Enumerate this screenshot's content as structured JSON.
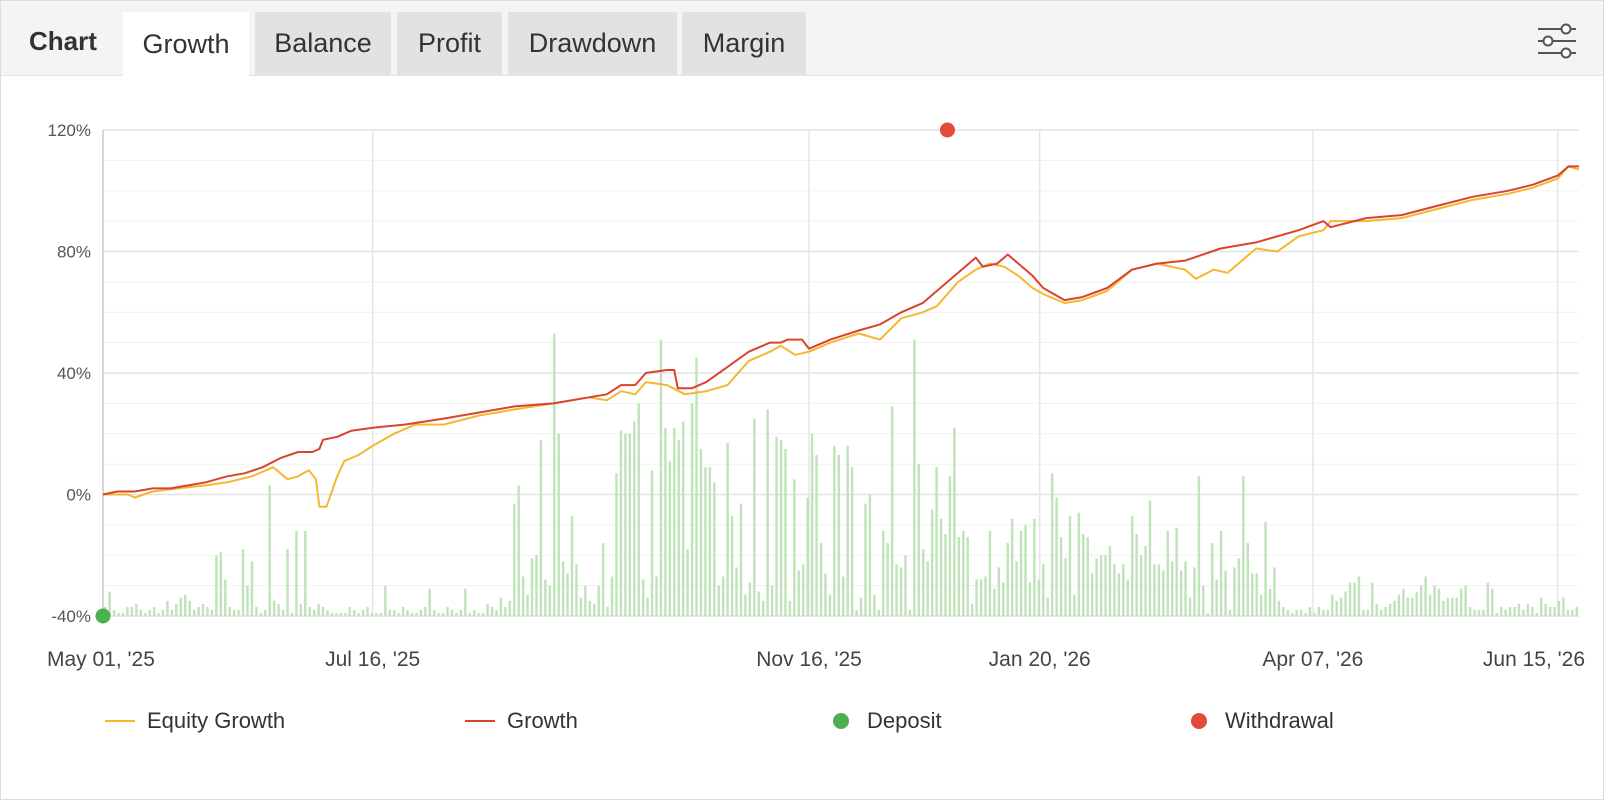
{
  "tabs": {
    "title": "Chart",
    "items": [
      {
        "label": "Growth",
        "active": true
      },
      {
        "label": "Balance",
        "active": false
      },
      {
        "label": "Profit",
        "active": false
      },
      {
        "label": "Drawdown",
        "active": false
      },
      {
        "label": "Margin",
        "active": false
      }
    ],
    "settings_icon": "sliders-icon"
  },
  "legend": [
    {
      "label": "Equity Growth",
      "kind": "line",
      "color": "#f5b731"
    },
    {
      "label": "Growth",
      "kind": "line",
      "color": "#d9432f"
    },
    {
      "label": "Deposit",
      "kind": "dot",
      "color": "#4caf50"
    },
    {
      "label": "Withdrawal",
      "kind": "dot",
      "color": "#e24a3b"
    }
  ],
  "chart_data": {
    "type": "line",
    "title": "",
    "xlabel": "",
    "ylabel": "",
    "x_range": [
      "2025-05-01",
      "2026-06-21"
    ],
    "ylim": [
      -40,
      120
    ],
    "y_ticks": [
      "120%",
      "80%",
      "40%",
      "0%",
      "-40%"
    ],
    "x_ticks": [
      {
        "label": "May 01, '25",
        "date": "2025-05-01"
      },
      {
        "label": "Jul 16, '25",
        "date": "2025-07-16"
      },
      {
        "label": "Nov 16, '25",
        "date": "2025-11-16"
      },
      {
        "label": "Jan 20, '26",
        "date": "2026-01-20"
      },
      {
        "label": "Apr 07, '26",
        "date": "2026-04-07"
      },
      {
        "label": "Jun 15, '26",
        "date": "2026-06-15"
      }
    ],
    "grid": true,
    "legend_position": "bottom",
    "series": [
      {
        "name": "Growth",
        "color": "#d9432f",
        "points": [
          [
            "2025-05-01",
            0
          ],
          [
            "2025-05-05",
            1
          ],
          [
            "2025-05-10",
            1
          ],
          [
            "2025-05-15",
            2
          ],
          [
            "2025-05-20",
            2
          ],
          [
            "2025-05-25",
            3
          ],
          [
            "2025-05-30",
            4
          ],
          [
            "2025-06-05",
            6
          ],
          [
            "2025-06-10",
            7
          ],
          [
            "2025-06-15",
            9
          ],
          [
            "2025-06-20",
            12
          ],
          [
            "2025-06-25",
            14
          ],
          [
            "2025-06-29",
            14
          ],
          [
            "2025-07-01",
            15
          ],
          [
            "2025-07-02",
            18
          ],
          [
            "2025-07-06",
            19
          ],
          [
            "2025-07-10",
            21
          ],
          [
            "2025-07-16",
            22
          ],
          [
            "2025-07-25",
            23
          ],
          [
            "2025-08-05",
            25
          ],
          [
            "2025-08-15",
            27
          ],
          [
            "2025-08-25",
            29
          ],
          [
            "2025-09-05",
            30
          ],
          [
            "2025-09-15",
            32
          ],
          [
            "2025-09-20",
            33
          ],
          [
            "2025-09-24",
            36
          ],
          [
            "2025-09-28",
            36
          ],
          [
            "2025-10-01",
            40
          ],
          [
            "2025-10-07",
            41
          ],
          [
            "2025-10-09",
            41
          ],
          [
            "2025-10-10",
            35
          ],
          [
            "2025-10-14",
            35
          ],
          [
            "2025-10-18",
            37
          ],
          [
            "2025-10-24",
            42
          ],
          [
            "2025-10-30",
            47
          ],
          [
            "2025-11-05",
            50
          ],
          [
            "2025-11-08",
            50
          ],
          [
            "2025-11-10",
            51
          ],
          [
            "2025-11-14",
            51
          ],
          [
            "2025-11-16",
            48
          ],
          [
            "2025-11-22",
            51
          ],
          [
            "2025-11-30",
            54
          ],
          [
            "2025-12-06",
            56
          ],
          [
            "2025-12-12",
            60
          ],
          [
            "2025-12-18",
            63
          ],
          [
            "2025-12-22",
            67
          ],
          [
            "2025-12-28",
            73
          ],
          [
            "2026-01-02",
            78
          ],
          [
            "2026-01-04",
            75
          ],
          [
            "2026-01-08",
            76
          ],
          [
            "2026-01-11",
            79
          ],
          [
            "2026-01-14",
            76
          ],
          [
            "2026-01-18",
            72
          ],
          [
            "2026-01-21",
            68
          ],
          [
            "2026-01-27",
            64
          ],
          [
            "2026-02-01",
            65
          ],
          [
            "2026-02-08",
            68
          ],
          [
            "2026-02-15",
            74
          ],
          [
            "2026-02-22",
            76
          ],
          [
            "2026-03-02",
            77
          ],
          [
            "2026-03-12",
            81
          ],
          [
            "2026-03-22",
            83
          ],
          [
            "2026-04-03",
            87
          ],
          [
            "2026-04-10",
            90
          ],
          [
            "2026-04-12",
            88
          ],
          [
            "2026-04-22",
            91
          ],
          [
            "2026-05-02",
            92
          ],
          [
            "2026-05-12",
            95
          ],
          [
            "2026-05-22",
            98
          ],
          [
            "2026-06-01",
            100
          ],
          [
            "2026-06-08",
            102
          ],
          [
            "2026-06-15",
            105
          ],
          [
            "2026-06-18",
            108
          ],
          [
            "2026-06-21",
            108
          ]
        ]
      },
      {
        "name": "Equity Growth",
        "color": "#f5b731",
        "points": [
          [
            "2025-05-01",
            0
          ],
          [
            "2025-05-08",
            0
          ],
          [
            "2025-05-10",
            -1
          ],
          [
            "2025-05-15",
            1
          ],
          [
            "2025-05-22",
            2
          ],
          [
            "2025-05-30",
            3
          ],
          [
            "2025-06-05",
            4
          ],
          [
            "2025-06-12",
            6
          ],
          [
            "2025-06-18",
            9
          ],
          [
            "2025-06-22",
            5
          ],
          [
            "2025-06-25",
            6
          ],
          [
            "2025-06-28",
            8
          ],
          [
            "2025-06-30",
            5
          ],
          [
            "2025-07-01",
            -4
          ],
          [
            "2025-07-03",
            -4
          ],
          [
            "2025-07-06",
            6
          ],
          [
            "2025-07-08",
            11
          ],
          [
            "2025-07-12",
            13
          ],
          [
            "2025-07-16",
            16
          ],
          [
            "2025-07-22",
            20
          ],
          [
            "2025-07-28",
            23
          ],
          [
            "2025-08-05",
            23
          ],
          [
            "2025-08-15",
            26
          ],
          [
            "2025-08-25",
            28
          ],
          [
            "2025-09-05",
            30
          ],
          [
            "2025-09-15",
            32
          ],
          [
            "2025-09-20",
            31
          ],
          [
            "2025-09-24",
            34
          ],
          [
            "2025-09-28",
            33
          ],
          [
            "2025-10-01",
            37
          ],
          [
            "2025-10-07",
            36
          ],
          [
            "2025-10-12",
            33
          ],
          [
            "2025-10-18",
            34
          ],
          [
            "2025-10-24",
            36
          ],
          [
            "2025-10-30",
            44
          ],
          [
            "2025-11-05",
            47
          ],
          [
            "2025-11-08",
            49
          ],
          [
            "2025-11-12",
            46
          ],
          [
            "2025-11-16",
            47
          ],
          [
            "2025-11-22",
            50
          ],
          [
            "2025-11-30",
            53
          ],
          [
            "2025-12-06",
            51
          ],
          [
            "2025-12-12",
            58
          ],
          [
            "2025-12-18",
            60
          ],
          [
            "2025-12-22",
            62
          ],
          [
            "2025-12-28",
            70
          ],
          [
            "2026-01-02",
            74
          ],
          [
            "2026-01-06",
            76
          ],
          [
            "2026-01-10",
            75
          ],
          [
            "2026-01-14",
            72
          ],
          [
            "2026-01-18",
            68
          ],
          [
            "2026-01-21",
            66
          ],
          [
            "2026-01-27",
            63
          ],
          [
            "2026-02-01",
            64
          ],
          [
            "2026-02-08",
            67
          ],
          [
            "2026-02-15",
            74
          ],
          [
            "2026-02-22",
            76
          ],
          [
            "2026-03-02",
            74
          ],
          [
            "2026-03-05",
            71
          ],
          [
            "2026-03-10",
            74
          ],
          [
            "2026-03-14",
            73
          ],
          [
            "2026-03-22",
            81
          ],
          [
            "2026-03-28",
            80
          ],
          [
            "2026-04-03",
            85
          ],
          [
            "2026-04-10",
            87
          ],
          [
            "2026-04-12",
            90
          ],
          [
            "2026-04-22",
            90
          ],
          [
            "2026-05-02",
            91
          ],
          [
            "2026-05-12",
            94
          ],
          [
            "2026-05-22",
            97
          ],
          [
            "2026-06-01",
            99
          ],
          [
            "2026-06-08",
            101
          ],
          [
            "2026-06-15",
            104
          ],
          [
            "2026-06-18",
            108
          ],
          [
            "2026-06-21",
            107
          ]
        ]
      }
    ],
    "bars": {
      "name": "Daily profit",
      "color": "#c1e3bb",
      "values": [
        3,
        8,
        2,
        1,
        1,
        3,
        3,
        4,
        2,
        1,
        2,
        3,
        1,
        2,
        5,
        2,
        4,
        6,
        7,
        5,
        2,
        3,
        4,
        3,
        2,
        20,
        21,
        12,
        3,
        2,
        2,
        22,
        10,
        18,
        3,
        1,
        2,
        43,
        5,
        4,
        2,
        22,
        1,
        28,
        4,
        28,
        3,
        2,
        4,
        3,
        2,
        1,
        1,
        1,
        1,
        3,
        2,
        1,
        2,
        3,
        1,
        1,
        1,
        10,
        2,
        2,
        1,
        3,
        2,
        1,
        1,
        2,
        3,
        9,
        2,
        1,
        1,
        3,
        2,
        1,
        2,
        9,
        1,
        2,
        1,
        1,
        4,
        3,
        2,
        6,
        3,
        5,
        37,
        43,
        13,
        7,
        19,
        20,
        58,
        12,
        10,
        93,
        60,
        18,
        14,
        33,
        17,
        6,
        10,
        5,
        4,
        10,
        24,
        3,
        13,
        47,
        61,
        60,
        60,
        64,
        70,
        12,
        6,
        48,
        13,
        91,
        62,
        51,
        62,
        58,
        64,
        22,
        70,
        85,
        55,
        49,
        49,
        44,
        10,
        13,
        57,
        33,
        16,
        37,
        7,
        11,
        65,
        8,
        5,
        68,
        10,
        59,
        58,
        55,
        5,
        45,
        15,
        17,
        39,
        60,
        53,
        24,
        14,
        7,
        56,
        53,
        13,
        56,
        49,
        2,
        6,
        37,
        40,
        7,
        2,
        28,
        24,
        69,
        17,
        16,
        20,
        2,
        91,
        50,
        22,
        18,
        35,
        49,
        32,
        27,
        46,
        62,
        26,
        28,
        26,
        4,
        12,
        12,
        13,
        28,
        9,
        16,
        11,
        24,
        32,
        18,
        28,
        30,
        11,
        32,
        12,
        17,
        6,
        47,
        39,
        26,
        19,
        33,
        7,
        34,
        27,
        26,
        14,
        19,
        20,
        20,
        23,
        17,
        14,
        17,
        12,
        33,
        27,
        20,
        23,
        38,
        17,
        17,
        15,
        28,
        18,
        29,
        15,
        18,
        6,
        16,
        46,
        10,
        1,
        24,
        12,
        28,
        15,
        2,
        16,
        19,
        46,
        24,
        14,
        14,
        7,
        31,
        9,
        16,
        5,
        3,
        2,
        1,
        2,
        2,
        1,
        3,
        1,
        3,
        2,
        2,
        7,
        5,
        6,
        8,
        11,
        11,
        13,
        2,
        2,
        11,
        4,
        2,
        3,
        4,
        5,
        7,
        9,
        6,
        6,
        8,
        10,
        13,
        7,
        10,
        9,
        5,
        6,
        6,
        6,
        9,
        10,
        3,
        2,
        2,
        2,
        11,
        9,
        1,
        3,
        2,
        3,
        3,
        4,
        2,
        4,
        3,
        1,
        6,
        4,
        3,
        3,
        5,
        6,
        2,
        2,
        3
      ]
    },
    "events": [
      {
        "type": "Deposit",
        "date": "2025-05-01",
        "value": -40
      },
      {
        "type": "Withdrawal",
        "date": "2025-12-25",
        "value": 120
      }
    ]
  }
}
